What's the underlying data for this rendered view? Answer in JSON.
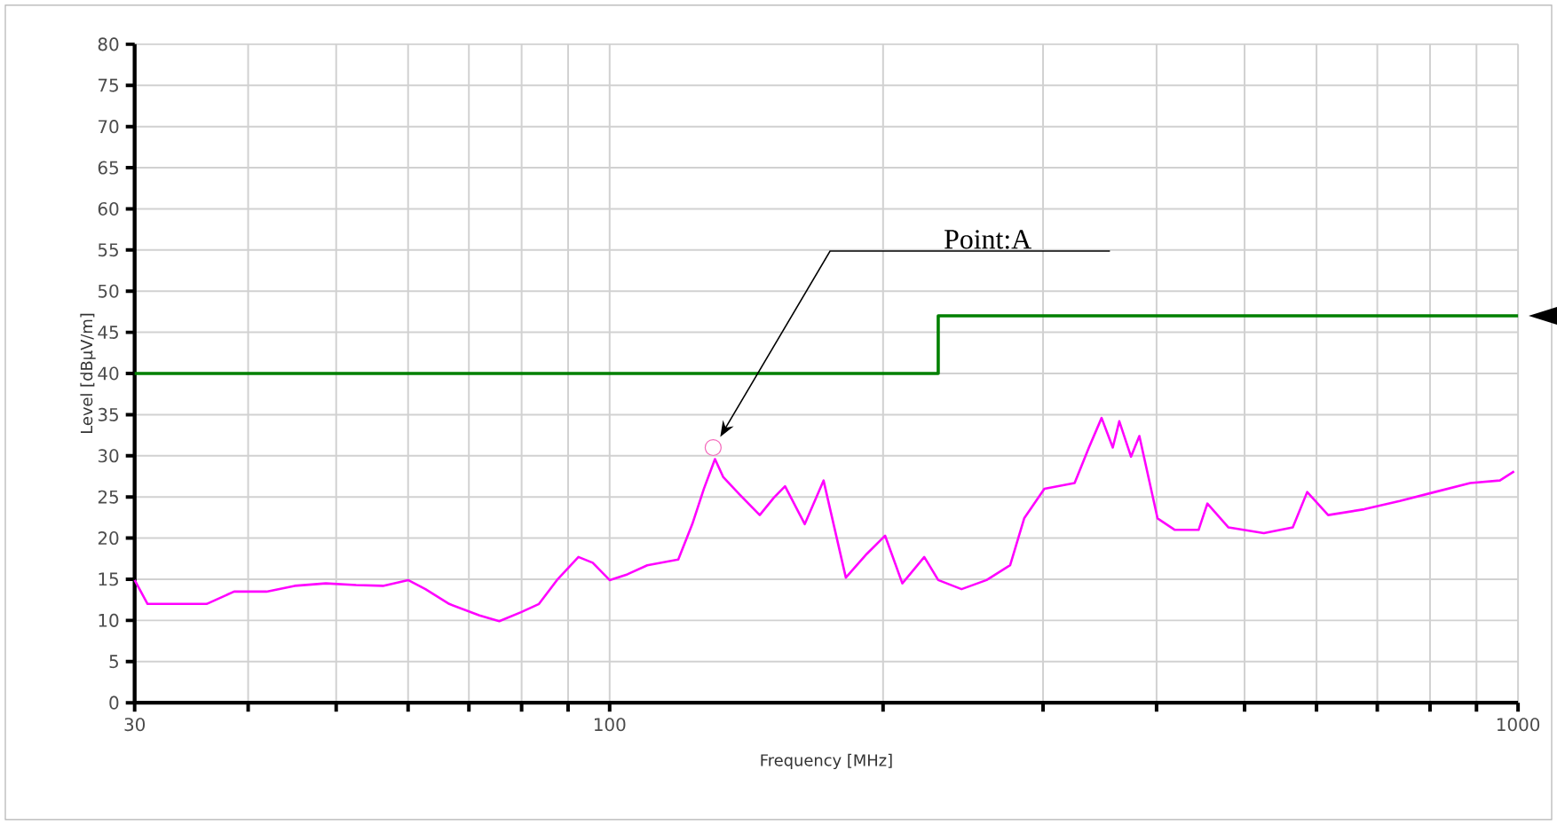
{
  "chart_data": {
    "type": "line",
    "xlabel": "Frequency [MHz]",
    "ylabel": "Level [dBµV/m]",
    "log": "x",
    "grid": true,
    "marker": "none",
    "line_style": "solid",
    "xlim": [
      30,
      1000
    ],
    "ylim": [
      0,
      80
    ],
    "xticks": [
      30,
      {
        "value": 40,
        "label": null
      },
      {
        "value": 50,
        "label": null
      },
      {
        "value": 60,
        "label": null
      },
      {
        "value": 70,
        "label": null
      },
      {
        "value": 80,
        "label": null
      },
      {
        "value": 90,
        "label": null
      },
      100,
      {
        "value": 200,
        "label": null
      },
      {
        "value": 300,
        "label": null
      },
      {
        "value": 400,
        "label": null
      },
      {
        "value": 500,
        "label": null
      },
      {
        "value": 600,
        "label": null
      },
      {
        "value": 700,
        "label": null
      },
      {
        "value": 800,
        "label": null
      },
      {
        "value": 900,
        "label": null
      },
      1000
    ],
    "yticks": [
      0,
      5,
      10,
      15,
      20,
      25,
      30,
      35,
      40,
      45,
      50,
      55,
      60,
      65,
      70,
      75,
      80
    ],
    "series": [
      {
        "color": "#ff00ff",
        "x": [
          30,
          31,
          33.4,
          36,
          38.6,
          41.9,
          45,
          48.7,
          52.6,
          56.3,
          60,
          62.7,
          66.6,
          71.9,
          75.6,
          79.9,
          83.6,
          87.5,
          92.4,
          95.8,
          100,
          104.6,
          110,
          119,
          123.3,
          127,
          130.6,
          133.4,
          139,
          146.3,
          151.6,
          156,
          164,
          172,
          182,
          192,
          201,
          210,
          222,
          230,
          244,
          260,
          276,
          286,
          301,
          325,
          337,
          348,
          358,
          364,
          375,
          383,
          401,
          419,
          445,
          455,
          480,
          525,
          565,
          586,
          618,
          677,
          741,
          810,
          886,
          955,
          990
        ],
        "values": [
          14.9,
          12.0,
          12.0,
          12.0,
          13.5,
          13.5,
          14.2,
          14.5,
          14.3,
          14.2,
          14.9,
          13.8,
          12.0,
          10.6,
          9.9,
          11.0,
          12.0,
          14.9,
          17.7,
          17.0,
          14.9,
          15.6,
          16.7,
          17.4,
          21.7,
          26.0,
          29.6,
          27.4,
          25.3,
          22.8,
          24.9,
          26.3,
          21.7,
          27.0,
          15.2,
          18.1,
          20.3,
          14.5,
          17.7,
          14.9,
          13.8,
          14.9,
          16.7,
          22.4,
          26.0,
          26.7,
          31.0,
          34.6,
          31.0,
          34.2,
          29.9,
          32.4,
          22.4,
          21.0,
          21.0,
          24.2,
          21.3,
          20.6,
          21.3,
          25.6,
          22.8,
          23.5,
          24.5,
          25.6,
          26.7,
          27.0,
          28.1
        ]
      },
      {
        "type": "step",
        "color": "#008000",
        "x": [
          30,
          230,
          1000
        ],
        "values": [
          40,
          47,
          47
        ]
      },
      {
        "type": "scatter",
        "color": "#f466ba",
        "marker": "circle",
        "x": [
          130
        ],
        "values": [
          31
        ]
      }
    ],
    "annotations": [
      "Point:A"
    ]
  }
}
